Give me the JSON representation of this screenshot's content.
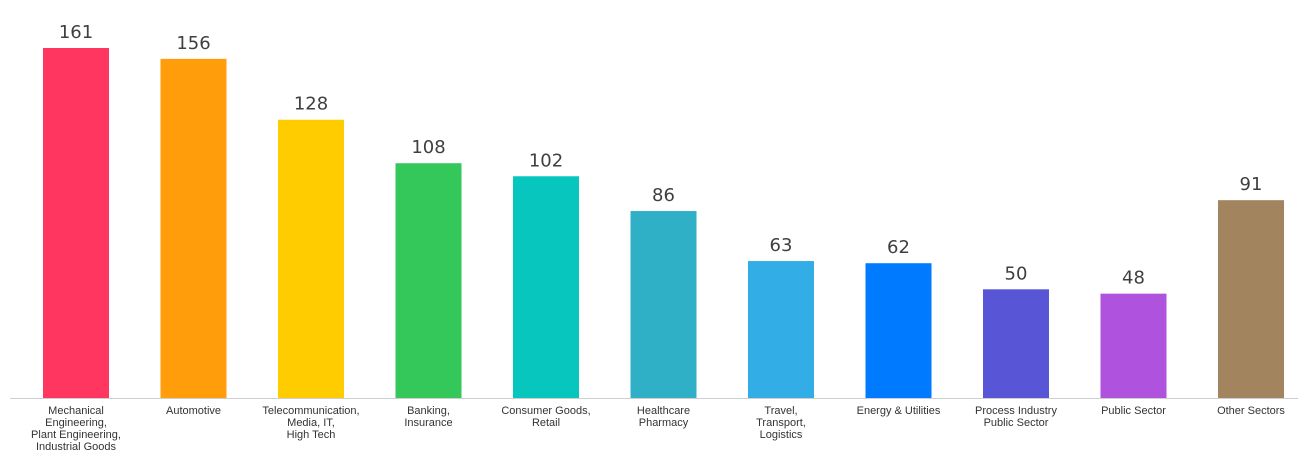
{
  "chart_data": {
    "type": "bar",
    "categories": [
      [
        "Mechanical",
        "Engineering,",
        "Plant Engineering,",
        "Industrial Goods"
      ],
      [
        "Automotive"
      ],
      [
        "Telecommunication,",
        "Media, IT,",
        "High Tech"
      ],
      [
        "Banking,",
        "Insurance"
      ],
      [
        "Consumer Goods,",
        "Retail"
      ],
      [
        "Healthcare",
        "Pharmacy"
      ],
      [
        "Travel,",
        "Transport,",
        "Logistics"
      ],
      [
        "Energy & Utilities"
      ],
      [
        "Process Industry",
        "Public Sector"
      ],
      [
        "Public Sector"
      ],
      [
        "Other Sectors"
      ]
    ],
    "values": [
      161,
      156,
      128,
      108,
      102,
      86,
      63,
      62,
      50,
      48,
      91
    ],
    "colors": [
      "#ff365f",
      "#ff9d0a",
      "#ffcc00",
      "#34c759",
      "#07c6be",
      "#30b0c7",
      "#32ade6",
      "#007aff",
      "#5856d6",
      "#af52de",
      "#a2845e"
    ],
    "axis_color": "#cfcfcf",
    "title": "",
    "xlabel": "",
    "ylabel": "",
    "ylim": [
      0,
      161
    ],
    "grid": false,
    "legend": "none"
  }
}
